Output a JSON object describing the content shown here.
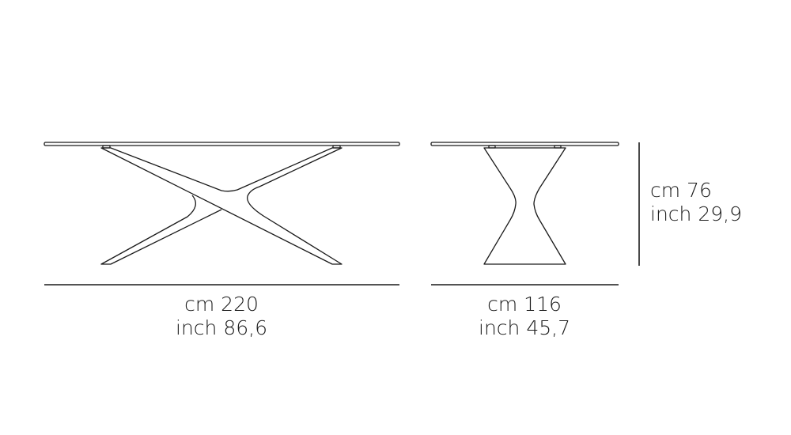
{
  "drawing": {
    "line_color": "#1a1a1a",
    "front_view": {
      "width_cm": "cm 220",
      "width_inch": "inch 86,6"
    },
    "side_view": {
      "depth_cm": "cm 116",
      "depth_inch": "inch 45,7"
    },
    "height": {
      "height_cm": "cm 76",
      "height_inch": "inch 29,9"
    }
  }
}
